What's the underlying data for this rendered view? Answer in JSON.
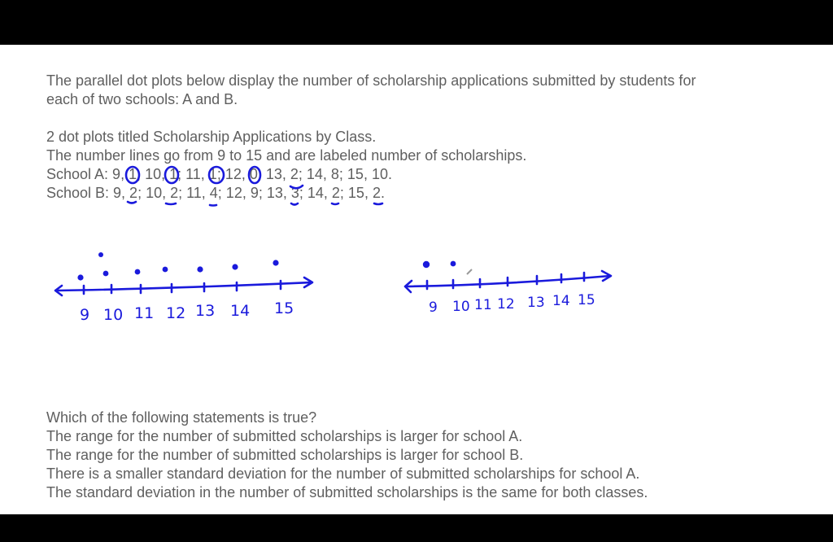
{
  "intro": [
    "The parallel dot plots below display the number of scholarship applications submitted by students for",
    "each of two schools: A and B."
  ],
  "description": [
    "2 dot plots titled Scholarship Applications by Class.",
    "The number lines go from 9 to 15 and are labeled number of scholarships.",
    "School A: 9, 1; 10, 1; 11, 1; 12, 0; 13, 2; 14, 8; 15, 10.",
    "School B: 9, 2; 10, 2; 11, 4; 12, 9; 13, 3; 14, 2; 15, 2."
  ],
  "question": "Which of the following statements is true?",
  "options": [
    "The range for the number of submitted scholarships is larger for school A.",
    "The range for the number of submitted scholarships is larger for school B.",
    "There is a smaller standard deviation for the number of submitted scholarships for school A.",
    "The standard deviation in the number of submitted scholarships is the same for both classes."
  ],
  "sketch": {
    "ink_color": "#1a1adc",
    "tick_labels": [
      "9",
      "10",
      "11",
      "12",
      "13",
      "14",
      "15"
    ]
  }
}
